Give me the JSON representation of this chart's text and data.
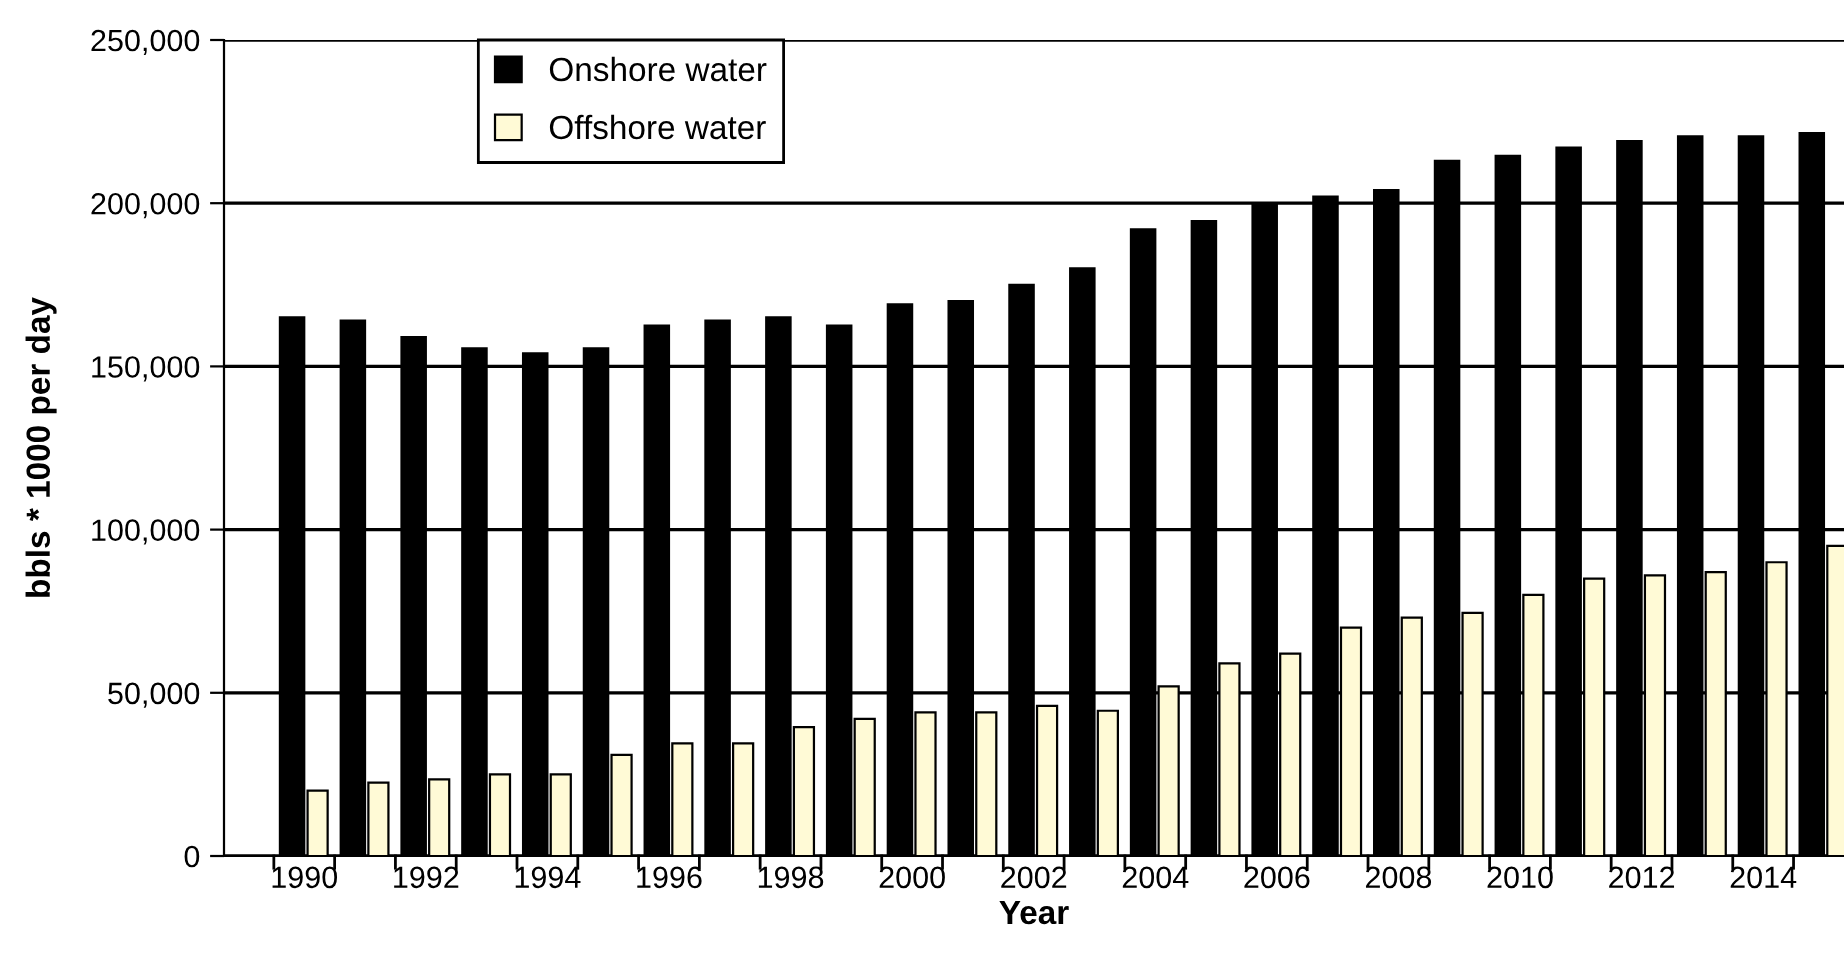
{
  "chart_data": {
    "type": "bar",
    "xlabel": "Year",
    "ylabel": "bbls * 1000 per day",
    "categories": [
      "1990",
      null,
      "1992",
      null,
      "1994",
      null,
      "1996",
      null,
      "1998",
      null,
      "2000",
      null,
      "2002",
      null,
      "2004",
      null,
      "2006",
      null,
      "2008",
      null,
      "2010",
      null,
      "2012",
      null,
      "2014",
      null
    ],
    "series": [
      {
        "name": "Onshore water",
        "color": "#000000",
        "values": [
          165000,
          164000,
          159000,
          155500,
          154000,
          155500,
          162500,
          164000,
          165000,
          162500,
          169000,
          170000,
          175000,
          180000,
          192000,
          194500,
          200000,
          202000,
          204000,
          213000,
          214500,
          217000,
          219000,
          220500,
          220500,
          221500
        ]
      },
      {
        "name": "Offshore water",
        "color": "#fffad6",
        "values": [
          20000,
          22500,
          23500,
          25000,
          25000,
          31000,
          34500,
          34500,
          39500,
          42000,
          44000,
          44000,
          46000,
          44500,
          52000,
          59000,
          62000,
          70000,
          73000,
          74500,
          80000,
          85000,
          86000,
          87000,
          90000,
          95000
        ]
      }
    ],
    "ylim": [
      0,
      250000
    ],
    "yticks": [
      {
        "value": 0,
        "label": "0"
      },
      {
        "value": 50000,
        "label": "50,000"
      },
      {
        "value": 100000,
        "label": "100,000"
      },
      {
        "value": 150000,
        "label": "150,000"
      },
      {
        "value": 200000,
        "label": "200,000"
      },
      {
        "value": 250000,
        "label": "250,000"
      }
    ],
    "grid": "y",
    "legend": "top left"
  }
}
